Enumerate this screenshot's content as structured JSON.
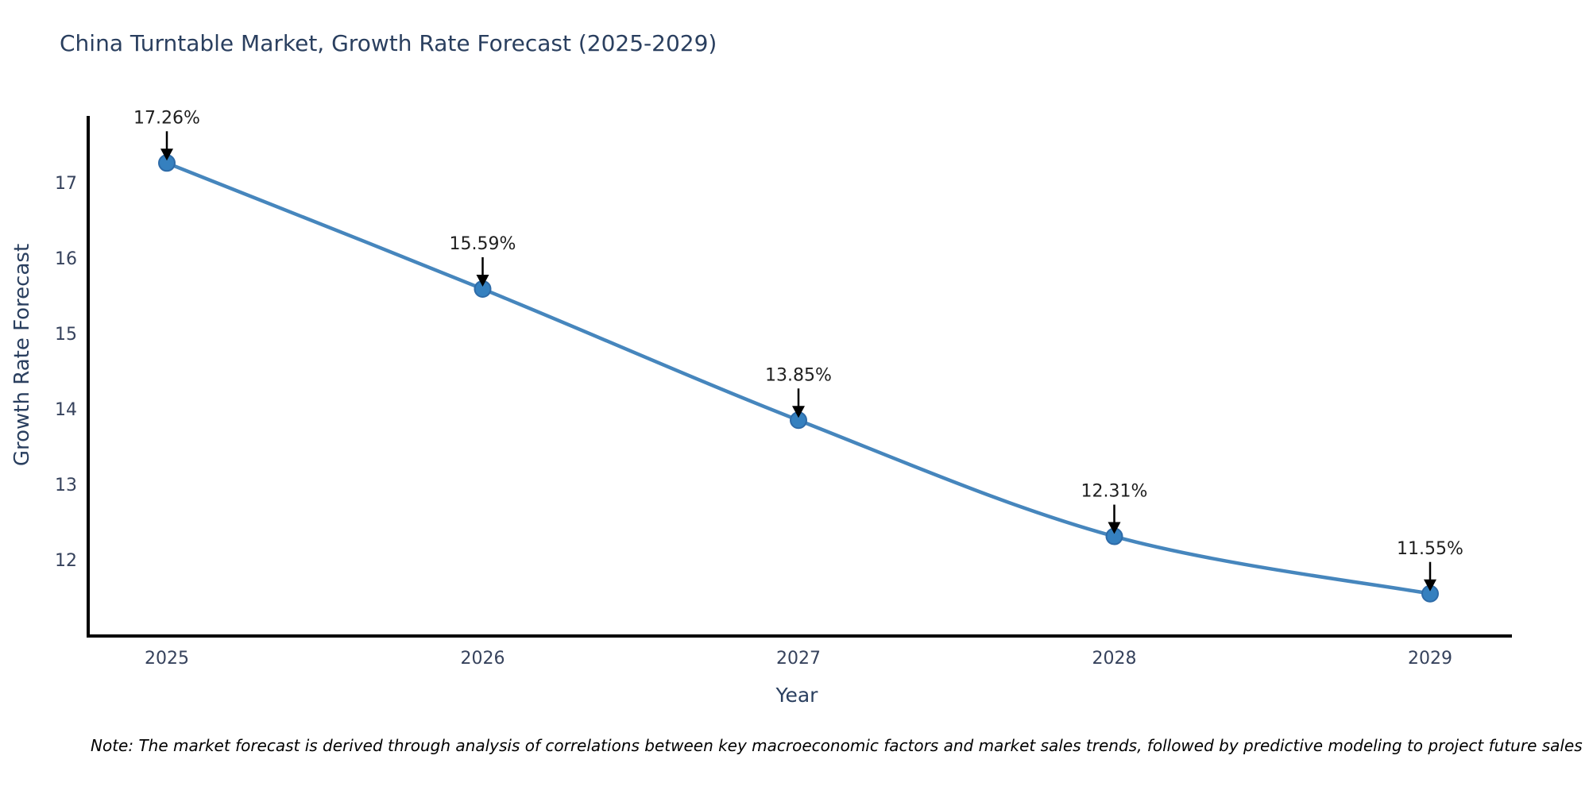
{
  "chart_data": {
    "type": "line",
    "title": "China Turntable Market, Growth Rate Forecast (2025-2029)",
    "xlabel": "Year",
    "ylabel": "Growth Rate Forecast",
    "categories": [
      "2025",
      "2026",
      "2027",
      "2028",
      "2029"
    ],
    "series": [
      {
        "name": "Growth Rate Forecast",
        "values": [
          17.26,
          15.59,
          13.85,
          12.31,
          11.55
        ],
        "point_labels": [
          "17.26%",
          "15.59%",
          "13.85%",
          "12.31%",
          "11.55%"
        ]
      }
    ],
    "yticks": [
      12,
      13,
      14,
      15,
      16,
      17
    ],
    "ylim": [
      11.0,
      17.9
    ],
    "grid": false,
    "legend_position": "none",
    "marker": "circle",
    "line_smoothing": "spline",
    "annotation_style": "value label with down arrow to point",
    "colors": {
      "line": "#4686bd",
      "marker_fill": "#3580bf",
      "marker_edge": "#2e6ba8",
      "axis": "#000000",
      "title_text": "#2a3f5f",
      "tick_text": "#36425c",
      "annotation_text": "#1f1f1f"
    },
    "note": "Note: The market forecast is derived through analysis of correlations between key macroeconomic factors and market sales trends, followed by predictive modeling to project future sales"
  }
}
